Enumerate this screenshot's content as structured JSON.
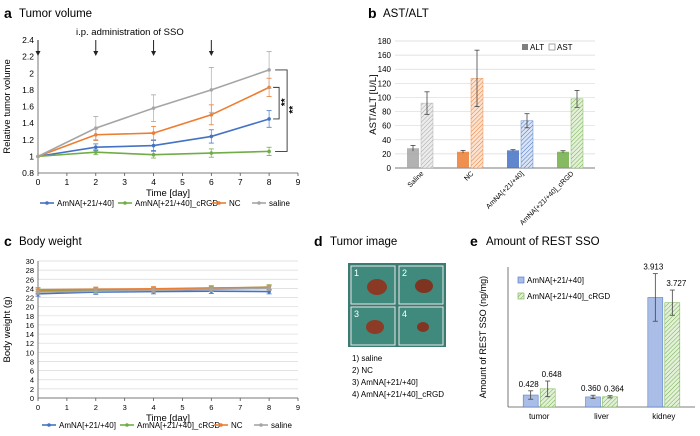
{
  "panels": {
    "a": {
      "letter": "a",
      "title": "Tumor volume",
      "note": "i.p. administration of SSO"
    },
    "b": {
      "letter": "b",
      "title": "AST/ALT"
    },
    "c": {
      "letter": "c",
      "title": "Body weight"
    },
    "d": {
      "letter": "d",
      "title": "Tumor image",
      "tiles": [
        "1",
        "2",
        "3",
        "4"
      ],
      "legend": [
        "1) saline",
        "2) NC",
        "3) AmNA[+21/+40]",
        "4) AmNA[+21/+40]_cRGD"
      ]
    },
    "e": {
      "letter": "e",
      "title": "Amount of REST SSO"
    }
  },
  "colors": {
    "blue": "#4472c4",
    "green": "#70ad47",
    "orange": "#ed7d31",
    "gray": "#a5a5a5",
    "dark": "#7f7f7f",
    "photo_bg": "#3a7c72"
  },
  "chart_data": [
    {
      "id": "a",
      "type": "line",
      "xlabel": "Time [day]",
      "ylabel": "Relative tumor volume",
      "xlim": [
        0,
        9
      ],
      "ylim": [
        0.8,
        2.4
      ],
      "xticks": [
        "0",
        "1",
        "2",
        "3",
        "4",
        "5",
        "6",
        "7",
        "8",
        "9"
      ],
      "yticks": [
        "0.8",
        "1",
        "1.2",
        "1.4",
        "1.6",
        "1.8",
        "2",
        "2.2",
        "2.4"
      ],
      "arrows_days": [
        0,
        2,
        4,
        6
      ],
      "significance": [
        "**",
        "**"
      ],
      "x": [
        0,
        2,
        4,
        6,
        8
      ],
      "series": [
        {
          "name": "AmNA[+21/+40]",
          "color": "#4472c4",
          "values": [
            1,
            1.11,
            1.13,
            1.24,
            1.45
          ],
          "err": [
            0,
            0.04,
            0.06,
            0.08,
            0.1
          ]
        },
        {
          "name": "AmNA[+21/+40]_cRGD",
          "color": "#70ad47",
          "values": [
            1,
            1.05,
            1.02,
            1.04,
            1.06
          ],
          "err": [
            0,
            0.03,
            0.04,
            0.05,
            0.05
          ]
        },
        {
          "name": "NC",
          "color": "#ed7d31",
          "values": [
            1,
            1.26,
            1.28,
            1.5,
            1.83
          ],
          "err": [
            0,
            0.07,
            0.08,
            0.12,
            0.11
          ]
        },
        {
          "name": "saline",
          "color": "#a5a5a5",
          "values": [
            1,
            1.34,
            1.58,
            1.8,
            2.04
          ],
          "err": [
            0,
            0.14,
            0.16,
            0.27,
            0.22
          ]
        }
      ]
    },
    {
      "id": "b",
      "type": "bar",
      "ylabel": "AST/ALT [U/L]",
      "ylim": [
        0,
        180
      ],
      "yticks": [
        "0",
        "20",
        "40",
        "60",
        "80",
        "100",
        "120",
        "140",
        "160",
        "180"
      ],
      "categories": [
        "Saline",
        "NC",
        "AmNA[+21/+40]",
        "AmNA[+21/+40]_cRGD"
      ],
      "legend": [
        "ALT",
        "AST"
      ],
      "alt": [
        28,
        23,
        25,
        23
      ],
      "alt_err": [
        4,
        2,
        1,
        1.5
      ],
      "ast": [
        92,
        127,
        67,
        98
      ],
      "ast_err": [
        16,
        40,
        10,
        12
      ],
      "colors_alt": [
        "#a5a5a5",
        "#ed7d31",
        "#4472c4",
        "#70ad47"
      ]
    },
    {
      "id": "c",
      "type": "line",
      "xlabel": "Time [day]",
      "ylabel": "Body weight (g)",
      "xlim": [
        0,
        9
      ],
      "ylim": [
        0,
        30
      ],
      "xticks": [
        "0",
        "1",
        "2",
        "3",
        "4",
        "5",
        "6",
        "7",
        "8",
        "9"
      ],
      "yticks": [
        "0",
        "2",
        "4",
        "6",
        "8",
        "10",
        "12",
        "14",
        "16",
        "18",
        "20",
        "22",
        "24",
        "26",
        "28",
        "30"
      ],
      "x": [
        0,
        2,
        4,
        6,
        8
      ],
      "series": [
        {
          "name": "AmNA[+21/+40]",
          "color": "#4472c4",
          "values": [
            22.8,
            23.2,
            23.3,
            23.4,
            23.3
          ],
          "err": [
            0.5,
            0.5,
            0.5,
            0.5,
            0.5
          ]
        },
        {
          "name": "AmNA[+21/+40]_cRGD",
          "color": "#70ad47",
          "values": [
            23.4,
            23.6,
            23.7,
            24.0,
            24.3
          ],
          "err": [
            0.5,
            0.5,
            0.5,
            0.5,
            0.5
          ]
        },
        {
          "name": "NC",
          "color": "#ed7d31",
          "values": [
            23.7,
            23.8,
            23.9,
            24.1,
            24.2
          ],
          "err": [
            0.5,
            0.5,
            0.5,
            0.5,
            0.5
          ]
        },
        {
          "name": "saline",
          "color": "#a5a5a5",
          "values": [
            23.2,
            23.4,
            23.6,
            23.8,
            24.0
          ],
          "err": [
            0.5,
            0.5,
            0.5,
            0.5,
            0.5
          ]
        }
      ]
    },
    {
      "id": "e",
      "type": "bar",
      "ylabel": "Amount of REST SSO (ng/mg)",
      "ylim": [
        0,
        5
      ],
      "categories": [
        "tumor",
        "liver",
        "kidney"
      ],
      "series": [
        {
          "name": "AmNA[+21/+40]",
          "color": "#4472c4",
          "values": [
            0.428,
            0.36,
            3.913
          ],
          "labels": [
            "0.428",
            "0.360",
            "3.913"
          ],
          "err": [
            0.15,
            0.06,
            0.85
          ]
        },
        {
          "name": "AmNA[+21/+40]_cRGD",
          "color": "#70ad47",
          "values": [
            0.648,
            0.364,
            3.727
          ],
          "labels": [
            "0.648",
            "0.364",
            "3.727"
          ],
          "err": [
            0.28,
            0.04,
            0.45
          ]
        }
      ]
    }
  ]
}
